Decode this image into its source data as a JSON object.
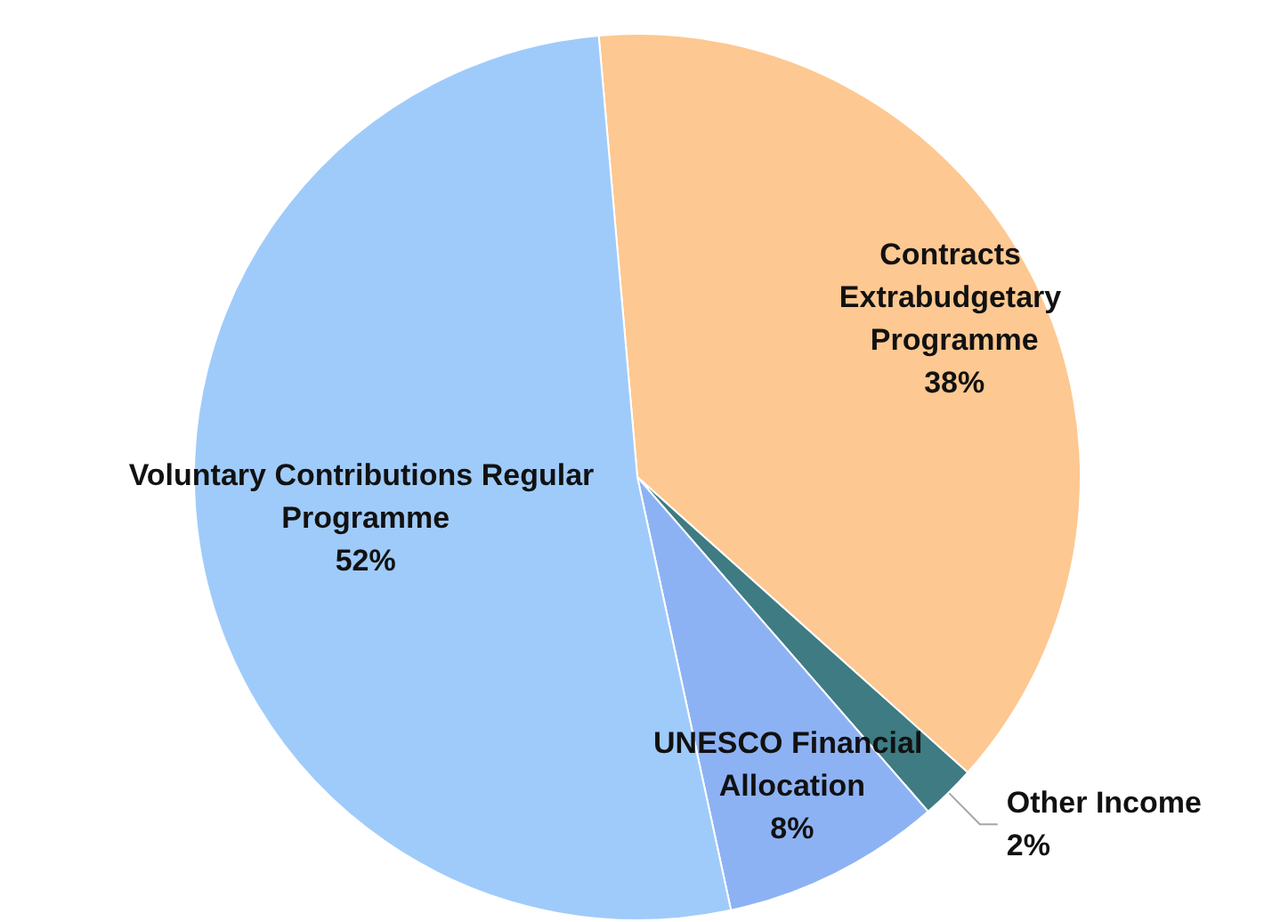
{
  "chart_data": {
    "type": "pie",
    "categories": [
      "Contracts Extrabudgetary Programme",
      "Other Income",
      "UNESCO Financial Allocation",
      "Voluntary Contributions Regular Programme"
    ],
    "values": [
      38,
      2,
      8,
      52
    ],
    "colors": [
      "#fdc891",
      "#3e7b83",
      "#8db2f4",
      "#9fcbfa"
    ],
    "value_labels": [
      "38%",
      "2%",
      "8%",
      "52%"
    ],
    "legend": false
  }
}
